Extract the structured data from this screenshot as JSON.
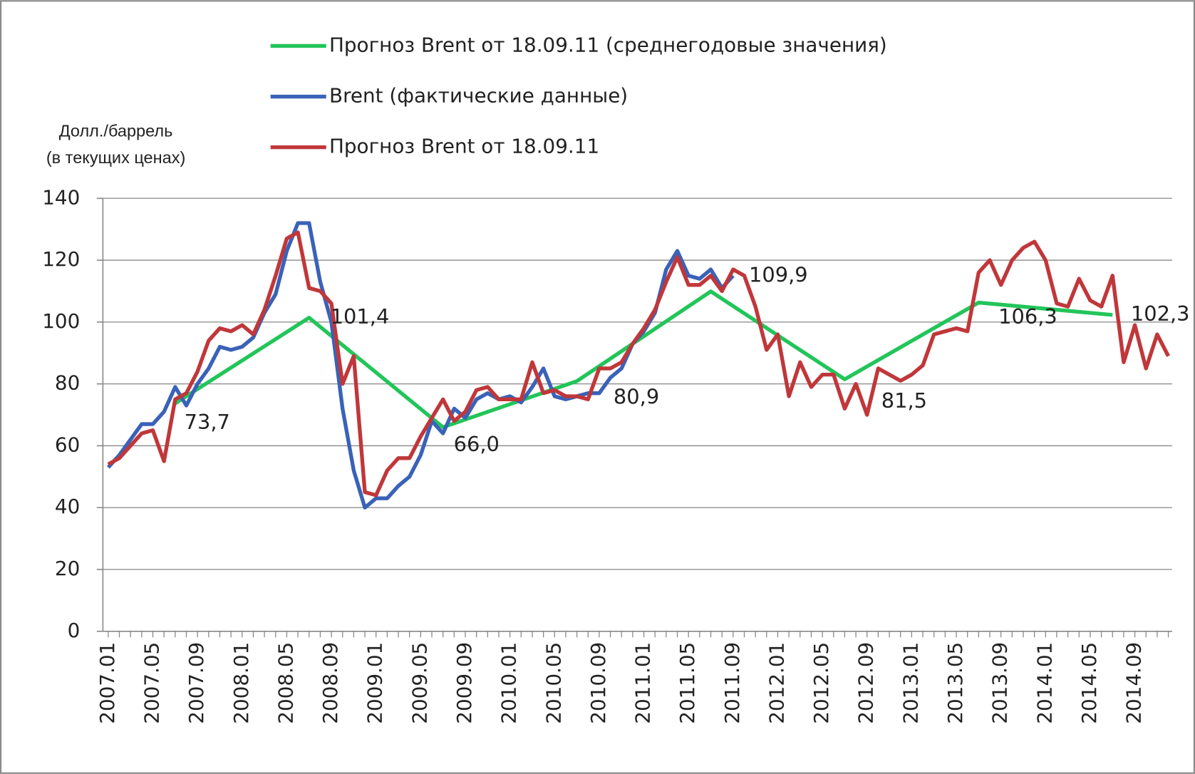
{
  "chart_data": {
    "type": "line",
    "y_label": [
      "Долл./баррель",
      "(в текущих ценах)"
    ],
    "categories": [
      "2007.01",
      null,
      null,
      null,
      "2007.05",
      null,
      null,
      null,
      "2007.09",
      null,
      null,
      null,
      "2008.01",
      null,
      null,
      null,
      "2008.05",
      null,
      null,
      null,
      "2008.09",
      null,
      null,
      null,
      "2009.01",
      null,
      null,
      null,
      "2009.05",
      null,
      null,
      null,
      "2009.09",
      null,
      null,
      null,
      "2010.01",
      null,
      null,
      null,
      "2010.05",
      null,
      null,
      null,
      "2010.09",
      null,
      null,
      null,
      "2011.01",
      null,
      null,
      null,
      "2011.05",
      null,
      null,
      null,
      "2011.09",
      null,
      null,
      null,
      "2012.01",
      null,
      null,
      null,
      "2012.05",
      null,
      null,
      null,
      "2012.09",
      null,
      null,
      null,
      "2013.01",
      null,
      null,
      null,
      "2013.05",
      null,
      null,
      null,
      "2013.09",
      null,
      null,
      null,
      "2014.01",
      null,
      null,
      null,
      "2014.05",
      null,
      null,
      null,
      "2014.09",
      null,
      null,
      null
    ],
    "ylim": [
      0,
      140
    ],
    "yticks": [
      0,
      20,
      40,
      60,
      80,
      100,
      120,
      140
    ],
    "grid": true,
    "legend": "top",
    "series": [
      {
        "name": "Прогноз Brent от 18.09.11 (среднегодовые значения)",
        "color": "#22c55a",
        "connect_gaps": true,
        "values": [
          null,
          null,
          null,
          null,
          null,
          null,
          73.7,
          null,
          null,
          null,
          null,
          null,
          null,
          null,
          null,
          null,
          null,
          null,
          101.4,
          null,
          null,
          null,
          null,
          null,
          null,
          null,
          null,
          null,
          null,
          null,
          66,
          null,
          null,
          null,
          null,
          null,
          null,
          null,
          null,
          null,
          null,
          null,
          80.9,
          null,
          null,
          null,
          null,
          null,
          null,
          null,
          null,
          null,
          null,
          null,
          109.9,
          null,
          null,
          null,
          null,
          null,
          null,
          null,
          null,
          null,
          null,
          null,
          81.5,
          null,
          null,
          null,
          null,
          null,
          null,
          null,
          null,
          null,
          null,
          null,
          106.3,
          null,
          null,
          null,
          null,
          null,
          null,
          null,
          null,
          null,
          null,
          null,
          102.3,
          null,
          null,
          null,
          null,
          null
        ],
        "value_labels": [
          null,
          null,
          null,
          null,
          null,
          null,
          "73,7",
          null,
          null,
          null,
          null,
          null,
          null,
          null,
          null,
          null,
          null,
          null,
          "101,4",
          null,
          null,
          null,
          null,
          null,
          null,
          null,
          null,
          null,
          null,
          null,
          "66,0",
          null,
          null,
          null,
          null,
          null,
          null,
          null,
          null,
          null,
          null,
          null,
          "80,9",
          null,
          null,
          null,
          null,
          null,
          null,
          null,
          null,
          null,
          null,
          null,
          "109,9",
          null,
          null,
          null,
          null,
          null,
          null,
          null,
          null,
          null,
          null,
          null,
          "81,5",
          null,
          null,
          null,
          null,
          null,
          null,
          null,
          null,
          null,
          null,
          null,
          "106,3",
          null,
          null,
          null,
          null,
          null,
          null,
          null,
          null,
          null,
          null,
          null,
          "102,3",
          null,
          null,
          null,
          null,
          null
        ]
      },
      {
        "name": "Brent (фактические данные)",
        "color": "#3a62b8",
        "values": [
          53,
          57,
          62,
          67,
          67,
          71,
          79,
          73,
          80,
          85,
          92,
          91,
          92,
          95,
          103,
          109,
          123,
          132,
          132,
          113,
          100,
          72,
          52,
          40,
          43,
          43,
          47,
          50,
          57,
          68,
          64,
          72,
          69,
          75,
          77,
          75,
          76,
          74,
          79,
          85,
          76,
          75,
          76,
          77,
          77,
          82,
          85,
          93,
          97,
          103,
          117,
          123,
          115,
          114,
          117,
          111,
          115,
          null,
          null,
          null,
          null,
          null,
          null,
          null,
          null,
          null,
          null,
          null,
          null,
          null,
          null,
          null,
          null,
          null,
          null,
          null,
          null,
          null,
          null,
          null,
          null,
          null,
          null,
          null,
          null,
          null,
          null,
          null,
          null,
          null,
          null,
          null,
          null,
          null,
          null,
          null
        ]
      },
      {
        "name": "Прогноз Brent от 18.09.11",
        "color": "#c0373a",
        "values": [
          54,
          56,
          60,
          64,
          65,
          55,
          75,
          77,
          84,
          94,
          98,
          97,
          99,
          96,
          104,
          115,
          127,
          129,
          111,
          110,
          106,
          80,
          89,
          45,
          44,
          52,
          56,
          56,
          63,
          69,
          75,
          68,
          71,
          78,
          79,
          75,
          75,
          75,
          87,
          77,
          78,
          76,
          76,
          75,
          85,
          85,
          87,
          93,
          98,
          104,
          113,
          121,
          112,
          112,
          115,
          110,
          117,
          115,
          105,
          91,
          96,
          76,
          87,
          79,
          83,
          83,
          72,
          80,
          70,
          85,
          83,
          81,
          83,
          86,
          96,
          97,
          98,
          97,
          116,
          120,
          112,
          120,
          124,
          126,
          120,
          106,
          105,
          114,
          107,
          105,
          115,
          87,
          99,
          85,
          96,
          89
        ]
      }
    ]
  }
}
